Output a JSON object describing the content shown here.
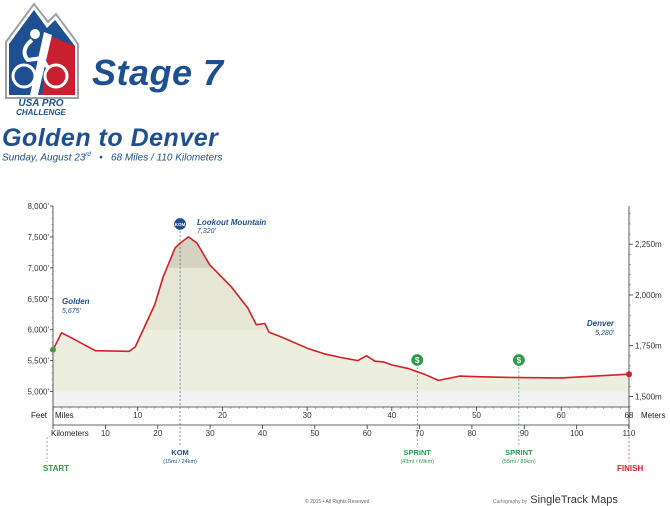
{
  "logo": {
    "line1": "USA PRO",
    "line2": "CHALLENGE"
  },
  "stage_title": "Stage 7",
  "route_title": "Golden to Denver",
  "subtitle_day": "Sunday, August 23",
  "subtitle_sup": "rd",
  "subtitle_bullet": "•",
  "subtitle_dist": "68 Miles / 110 Kilometers",
  "footer": {
    "copyright": "© 2015 • All Rights Reserved",
    "credit_small": "Cartography by",
    "credit_name": "SingleTrack Maps"
  },
  "colors": {
    "brand_blue": "#1d4f91",
    "profile_red": "#d61f26",
    "green": "#2e9a4a",
    "fill_light": "#eceee0",
    "fill_band": "#e6e6d4",
    "fill_dark": "#d6d2c2"
  },
  "chart_data": {
    "type": "area",
    "x_unit_label": "Miles",
    "y_unit_label": "Feet",
    "y_right_unit_label": "Meters",
    "km_row_label": "Kilometers",
    "xlim": [
      0,
      68
    ],
    "ylim": [
      4750,
      8000
    ],
    "mile_ticks": [
      0,
      10,
      20,
      30,
      40,
      50,
      60,
      68
    ],
    "mile_tick_labels": [
      "",
      "10",
      "20",
      "30",
      "40",
      "50",
      "60",
      "68"
    ],
    "km_ticks": [
      10,
      20,
      30,
      40,
      50,
      60,
      70,
      80,
      90,
      100,
      110
    ],
    "feet_ticks": [
      5000,
      5500,
      6000,
      6500,
      7000,
      7500,
      8000
    ],
    "feet_tick_labels": [
      "5,000'",
      "5,500'",
      "6,000'",
      "6,500'",
      "7,000'",
      "7,500'",
      "8,000'"
    ],
    "meter_ticks": [
      1500,
      1750,
      2000,
      2250
    ],
    "meter_tick_labels": [
      "1,500m",
      "1,750m",
      "2,000m",
      "2,250m"
    ],
    "profile": [
      [
        0,
        5675
      ],
      [
        1,
        5950
      ],
      [
        2,
        5880
      ],
      [
        5,
        5660
      ],
      [
        9,
        5650
      ],
      [
        9.7,
        5720
      ],
      [
        12,
        6400
      ],
      [
        13,
        6850
      ],
      [
        14.4,
        7320
      ],
      [
        15,
        7400
      ],
      [
        16,
        7500
      ],
      [
        17,
        7400
      ],
      [
        18.5,
        7050
      ],
      [
        21,
        6700
      ],
      [
        23,
        6350
      ],
      [
        24,
        6080
      ],
      [
        25,
        6100
      ],
      [
        25.5,
        5960
      ],
      [
        27,
        5880
      ],
      [
        30,
        5700
      ],
      [
        32,
        5610
      ],
      [
        34,
        5550
      ],
      [
        36,
        5500
      ],
      [
        37,
        5580
      ],
      [
        38,
        5490
      ],
      [
        39,
        5480
      ],
      [
        40,
        5430
      ],
      [
        42,
        5370
      ],
      [
        44,
        5270
      ],
      [
        45.5,
        5180
      ],
      [
        48,
        5250
      ],
      [
        50,
        5240
      ],
      [
        55,
        5225
      ],
      [
        60,
        5220
      ],
      [
        68,
        5280
      ]
    ],
    "start": {
      "label": "START",
      "mile": 0
    },
    "finish": {
      "label": "FINISH",
      "mile": 68
    },
    "places": [
      {
        "name": "Golden",
        "elev": "5,675'",
        "mile": 0,
        "feet": 5675
      },
      {
        "name": "Denver",
        "elev": "5,280'",
        "mile": 68,
        "feet": 5280
      },
      {
        "name": "Lookout Mountain",
        "elev": "7,320'",
        "mile": 15,
        "feet": 7320
      }
    ],
    "markers": [
      {
        "type": "kom",
        "icon": "KOM",
        "label": "KOM",
        "sublabel": "(15mi / 24km)",
        "mile": 15
      },
      {
        "type": "sprint",
        "icon": "$",
        "label": "SPRINT",
        "sublabel": "(43mi / 69km)",
        "mile": 43
      },
      {
        "type": "sprint",
        "icon": "$",
        "label": "SPRINT",
        "sublabel": "(55mi / 89km)",
        "mile": 55
      }
    ]
  }
}
